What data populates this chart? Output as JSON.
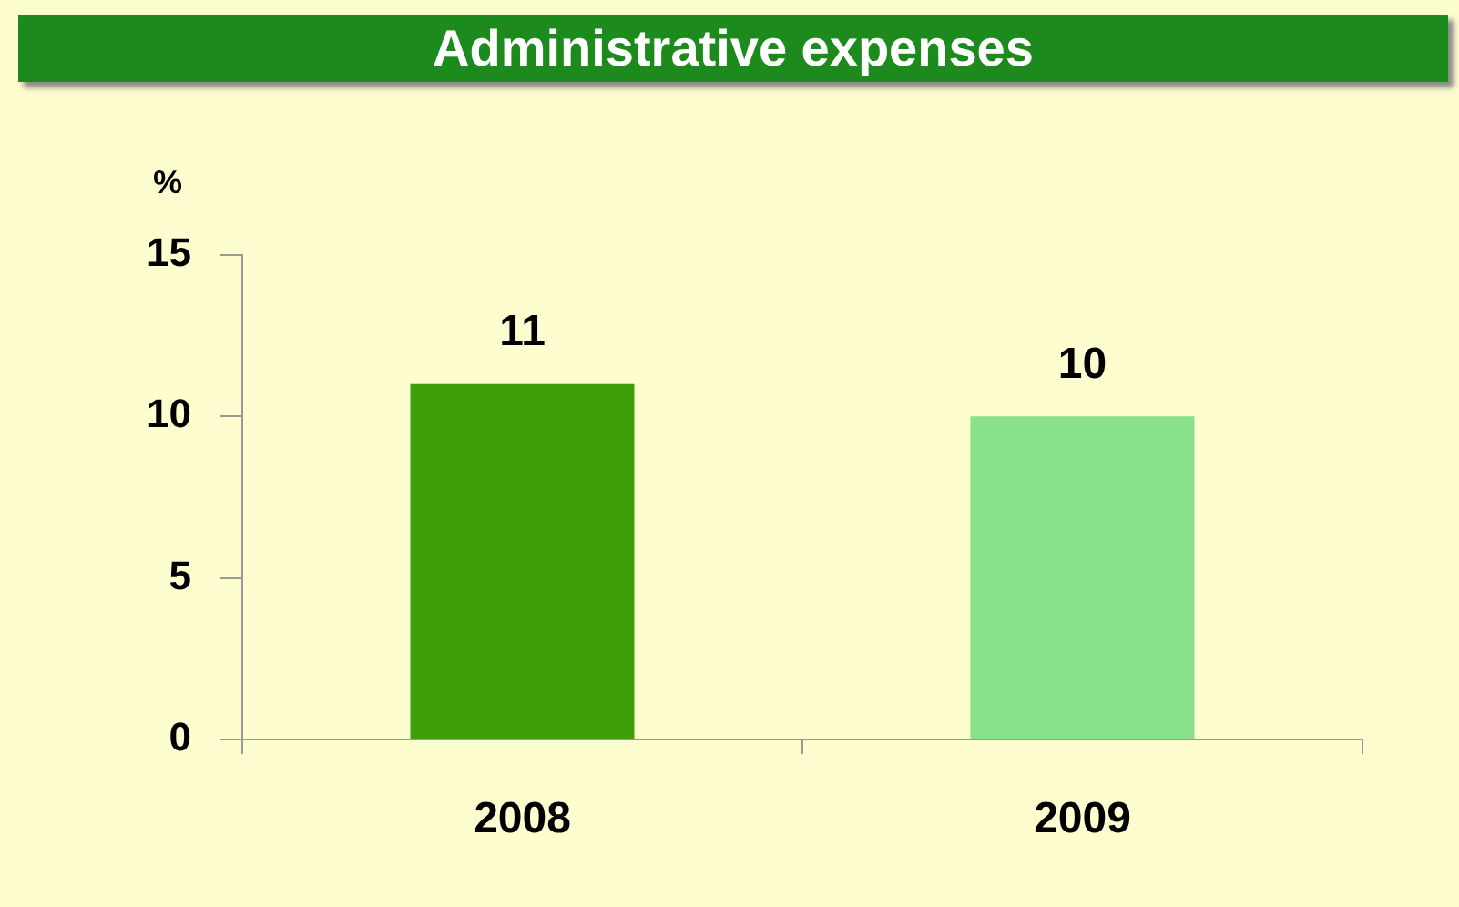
{
  "chart_data": {
    "type": "bar",
    "title": "Administrative expenses",
    "ylabel": "%",
    "categories": [
      "2008",
      "2009"
    ],
    "values": [
      11,
      10
    ],
    "colors": [
      "#3f9f08",
      "#88e088"
    ],
    "ylim": [
      0,
      15
    ],
    "yticks": [
      0,
      5,
      10,
      15
    ],
    "grid": false,
    "legend": false,
    "data_labels": true
  }
}
